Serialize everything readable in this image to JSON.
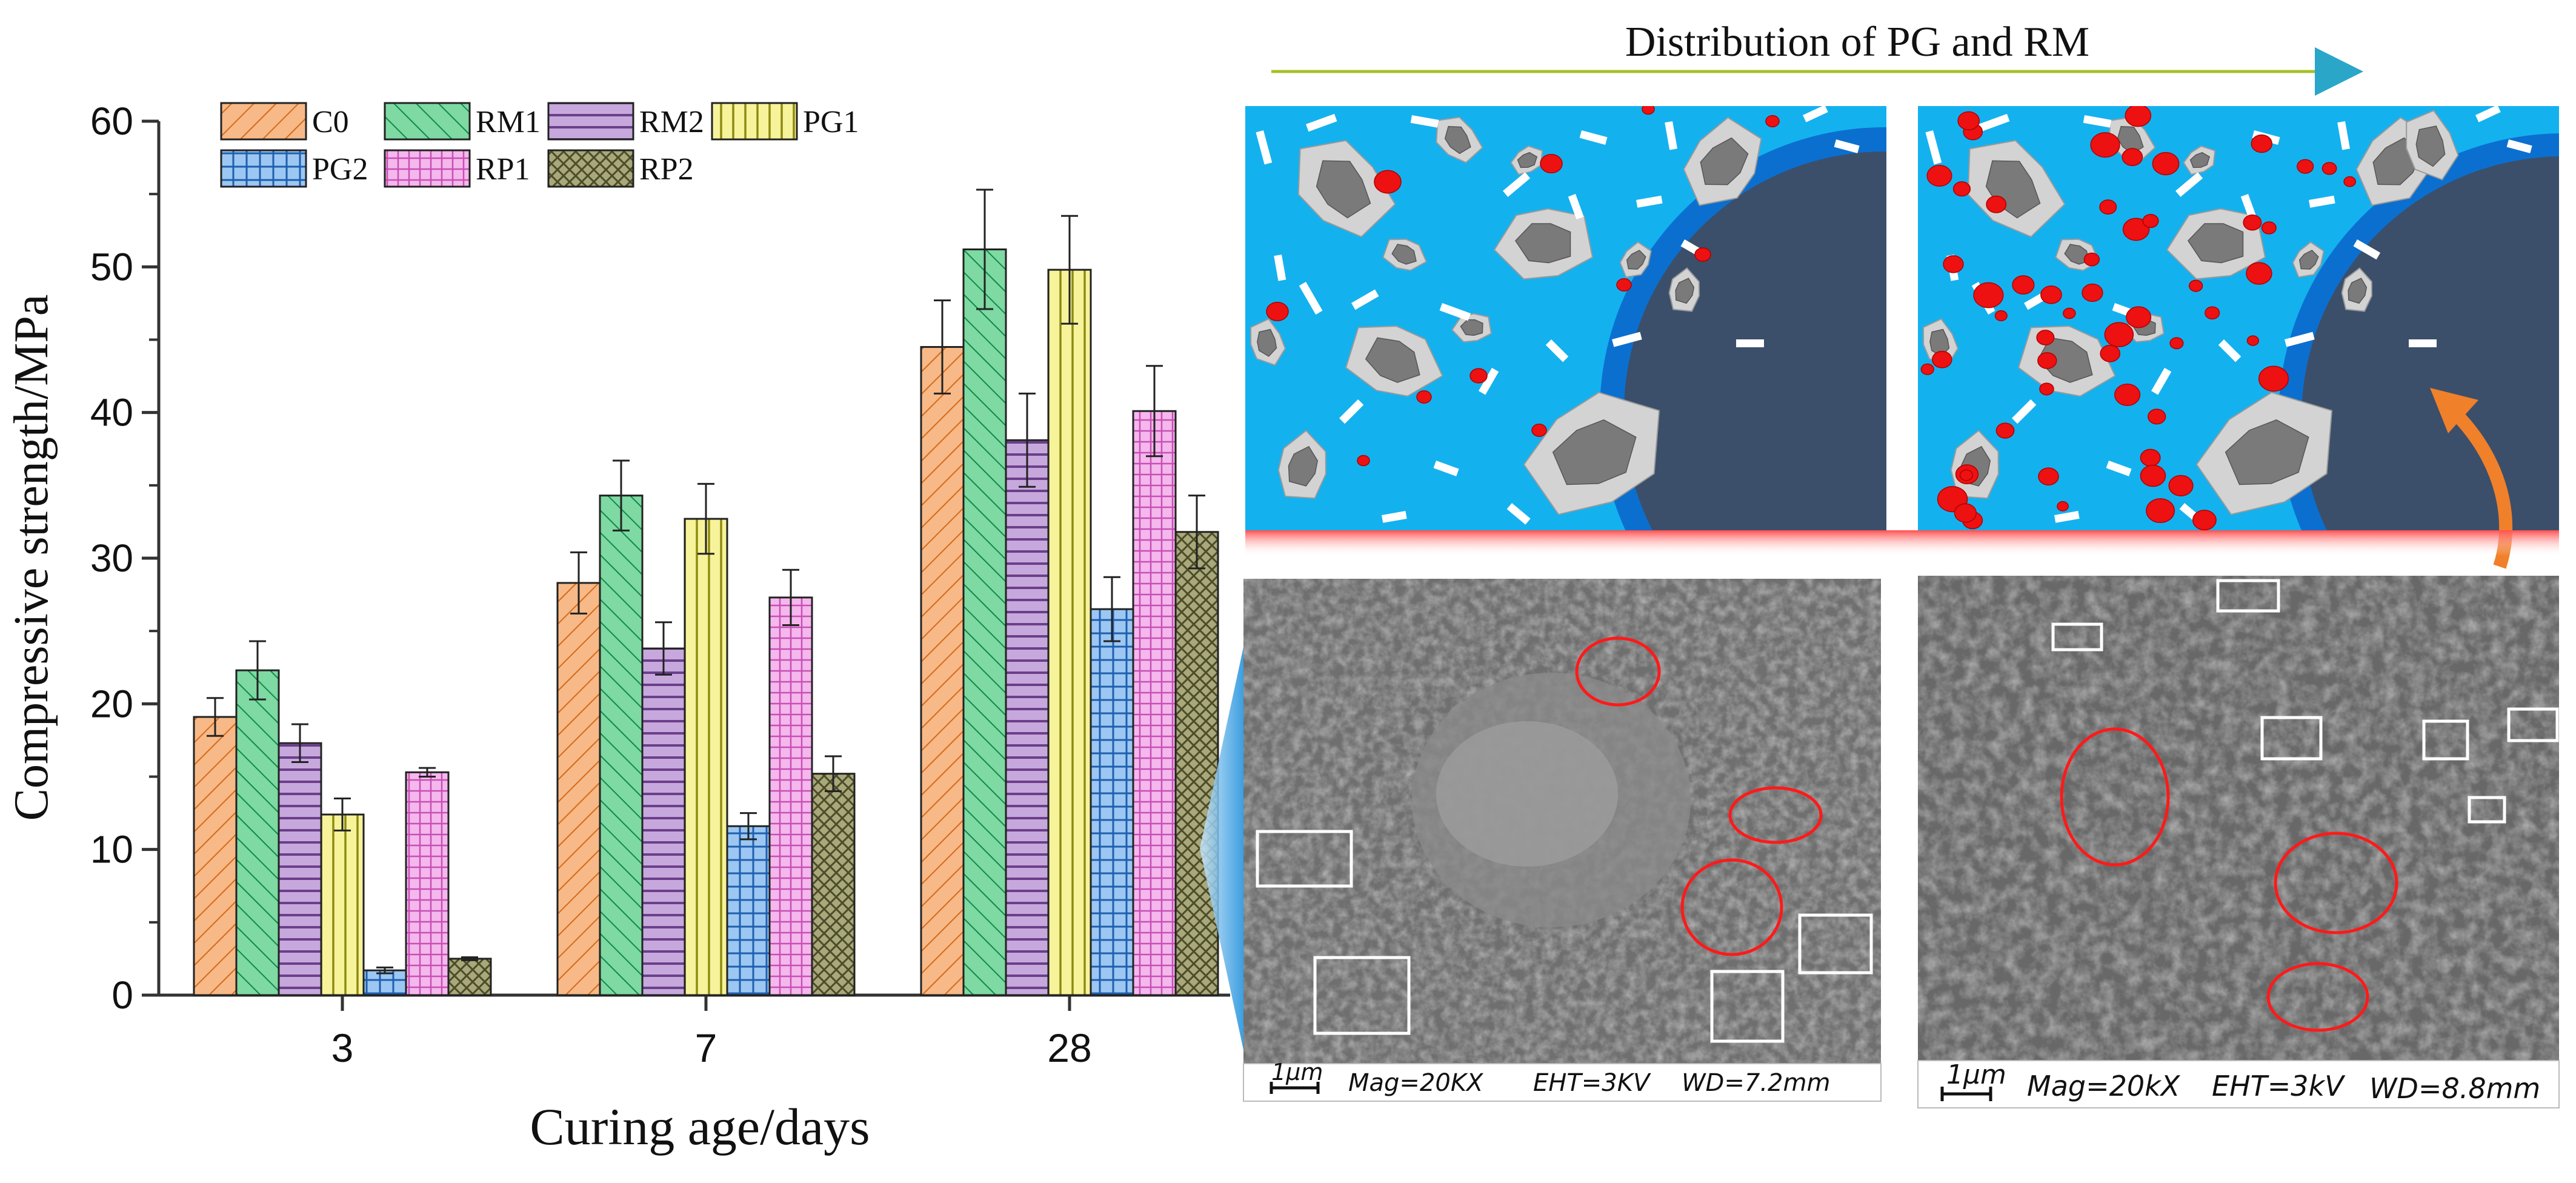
{
  "chart_data": {
    "type": "bar",
    "xlabel": "Curing age/days",
    "ylabel": "Compressive strength/MPa",
    "ylim": [
      0,
      60
    ],
    "yticks": [
      0,
      10,
      20,
      30,
      40,
      50,
      60
    ],
    "categories": [
      "3",
      "7",
      "28"
    ],
    "legend_position": "top-left",
    "grid": false,
    "series": [
      {
        "name": "C0",
        "color": "#f7b987",
        "pattern": "diag-right",
        "values": [
          19.1,
          28.3,
          44.5
        ],
        "errors": [
          1.3,
          2.1,
          3.2
        ]
      },
      {
        "name": "RM1",
        "color": "#7ed9a3",
        "pattern": "diag-left",
        "values": [
          22.3,
          34.3,
          51.2
        ],
        "errors": [
          2.0,
          2.4,
          4.1
        ]
      },
      {
        "name": "RM2",
        "color": "#c7a8dc",
        "pattern": "horizontal",
        "values": [
          17.3,
          23.8,
          38.1
        ],
        "errors": [
          1.3,
          1.8,
          3.2
        ]
      },
      {
        "name": "PG1",
        "color": "#f6f39a",
        "pattern": "vertical",
        "values": [
          12.4,
          32.7,
          49.8
        ],
        "errors": [
          1.1,
          2.4,
          3.7
        ]
      },
      {
        "name": "PG2",
        "color": "#9cc7f2",
        "pattern": "grid",
        "values": [
          1.7,
          11.6,
          26.5
        ],
        "errors": [
          0.2,
          0.9,
          2.2
        ]
      },
      {
        "name": "RP1",
        "color": "#f4b8ec",
        "pattern": "grid-fine",
        "values": [
          15.3,
          27.3,
          40.1
        ],
        "errors": [
          0.3,
          1.9,
          3.1
        ]
      },
      {
        "name": "RP2",
        "color": "#a8a87a",
        "pattern": "crosshatch",
        "values": [
          2.5,
          15.2,
          31.8
        ],
        "errors": [
          0.1,
          1.2,
          2.5
        ]
      }
    ]
  },
  "schematic": {
    "title": "Distribution of PG  and RM",
    "colors": {
      "solution": "#14b1ef",
      "particle_rim": "#d3d3d3",
      "particle_core": "#7a7a7a",
      "red_particle": "#ee1111",
      "large_particle": "#3b4f6a",
      "large_rim": "#0b6fd0",
      "arrow": "#f0802a",
      "line": "#a5c125"
    }
  },
  "sem": {
    "left_caption": {
      "scale": "1μm",
      "mag": "Mag=20KX",
      "eht": "EHT=3KV",
      "wd": "WD=7.2mm"
    },
    "right_caption": {
      "scale": "1μm",
      "mag": "Mag=20kX",
      "eht": "EHT=3kV",
      "wd": "WD=8.8mm"
    }
  }
}
